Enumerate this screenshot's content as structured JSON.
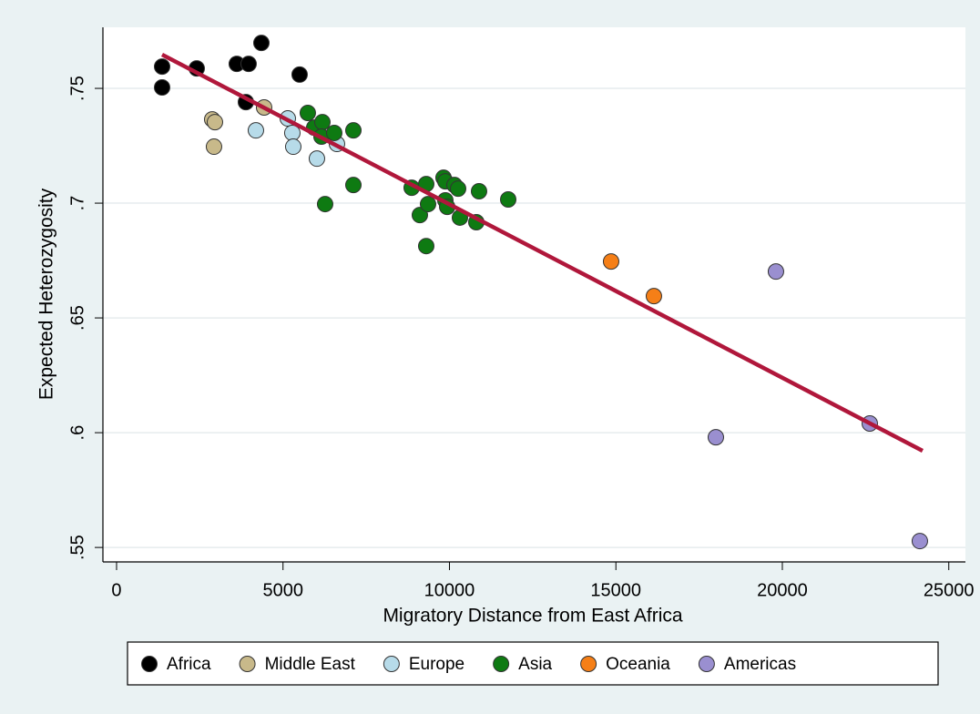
{
  "chart_data": {
    "type": "scatter",
    "xlabel": "Migratory Distance from East Africa",
    "ylabel": "Expected Heterozygosity",
    "xlim": [
      -410,
      25500
    ],
    "ylim": [
      0.5437,
      0.7766
    ],
    "xticks": [
      0,
      5000,
      10000,
      15000,
      20000,
      25000
    ],
    "yticks": [
      {
        "value": 0.55,
        "label": ".55"
      },
      {
        "value": 0.6,
        "label": ".6"
      },
      {
        "value": 0.65,
        "label": ".65"
      },
      {
        "value": 0.7,
        "label": ".7"
      },
      {
        "value": 0.75,
        "label": ".75"
      }
    ],
    "grid": true,
    "legend": "bottom",
    "series": [
      {
        "name": "Africa",
        "color": "#000000",
        "x": [
          1368,
          1368,
          2408,
          3611,
          3967,
          4350,
          3885,
          5499
        ],
        "y": [
          0.7595,
          0.7504,
          0.7587,
          0.7607,
          0.7607,
          0.7698,
          0.744,
          0.756
        ]
      },
      {
        "name": "Middle East",
        "color": "#c8b98a",
        "x": [
          2873,
          2955,
          2927,
          4432
        ],
        "y": [
          0.7365,
          0.7353,
          0.7246,
          0.7417
        ]
      },
      {
        "name": "Europe",
        "color": "#b7dbe9",
        "x": [
          4186,
          5144,
          5280,
          5308,
          6019,
          6621
        ],
        "y": [
          0.7317,
          0.7369,
          0.7306,
          0.7246,
          0.7194,
          0.7258
        ]
      },
      {
        "name": "Asia",
        "color": "#0e7a12",
        "x": [
          5745,
          5937,
          6183,
          6156,
          6539,
          7114,
          7114,
          6265,
          8865,
          9302,
          9111,
          9357,
          9302,
          9822,
          9877,
          9877,
          9932,
          10150,
          10260,
          10315,
          10807,
          10889,
          11765
        ],
        "y": [
          0.7393,
          0.7329,
          0.7353,
          0.729,
          0.7306,
          0.7317,
          0.7079,
          0.6996,
          0.7067,
          0.7083,
          0.6948,
          0.6996,
          0.6813,
          0.7111,
          0.7095,
          0.7012,
          0.6984,
          0.7079,
          0.7063,
          0.6937,
          0.6917,
          0.7052,
          0.7016
        ]
      },
      {
        "name": "Oceania",
        "color": "#f57f17",
        "x": [
          14856,
          16142
        ],
        "y": [
          0.6746,
          0.6595
        ]
      },
      {
        "name": "Americas",
        "color": "#9a8fd0",
        "x": [
          19808,
          18003,
          22627,
          24131
        ],
        "y": [
          0.6702,
          0.598,
          0.604,
          0.5528
        ]
      }
    ],
    "fit": {
      "color": "#b0173b",
      "x": [
        1368,
        24213
      ],
      "y": [
        0.7647,
        0.5921
      ]
    }
  }
}
